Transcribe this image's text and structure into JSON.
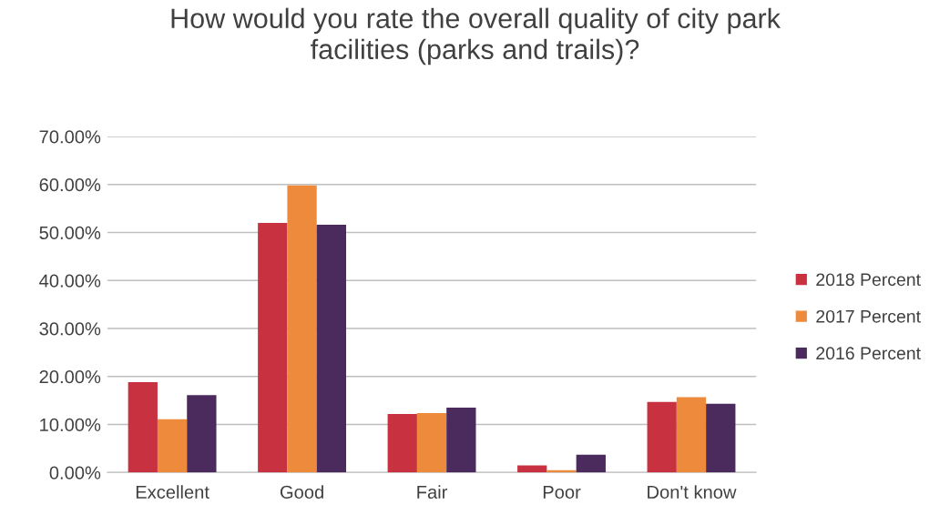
{
  "chart_data": {
    "type": "bar",
    "title": "How would you rate the overall quality of city park facilities (parks and trails)?",
    "categories": [
      "Excellent",
      "Good",
      "Fair",
      "Poor",
      "Don't know"
    ],
    "series": [
      {
        "name": "2018 Percent",
        "color": "#c8313f",
        "values": [
          18.8,
          52.0,
          12.2,
          1.5,
          14.7
        ]
      },
      {
        "name": "2017 Percent",
        "color": "#ed8a3c",
        "values": [
          11.1,
          59.8,
          12.4,
          0.5,
          15.7
        ]
      },
      {
        "name": "2016 Percent",
        "color": "#4b2a5e",
        "values": [
          16.1,
          51.6,
          13.5,
          3.7,
          14.3
        ]
      }
    ],
    "ylim": [
      0,
      70
    ],
    "yticks": [
      {
        "value": 0,
        "label": "0.00%"
      },
      {
        "value": 10,
        "label": "10.00%"
      },
      {
        "value": 20,
        "label": "20.00%"
      },
      {
        "value": 30,
        "label": "30.00%"
      },
      {
        "value": 40,
        "label": "40.00%"
      },
      {
        "value": 50,
        "label": "50.00%"
      },
      {
        "value": 60,
        "label": "60.00%"
      },
      {
        "value": 70,
        "label": "70.00%"
      }
    ],
    "grid": "y",
    "legend": "right"
  }
}
